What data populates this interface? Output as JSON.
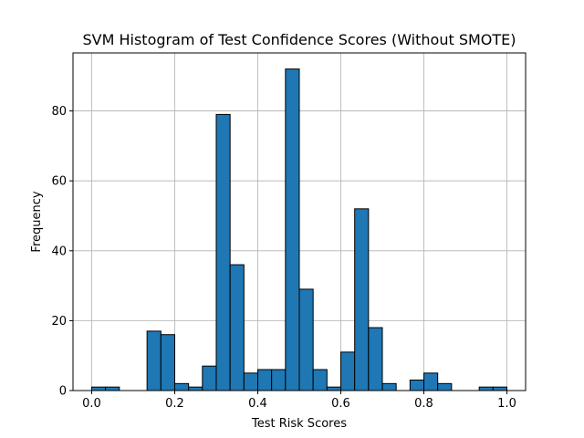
{
  "chart_data": {
    "type": "bar",
    "title": "SVM Histogram of Test Confidence Scores (Without SMOTE)",
    "xlabel": "Test Risk Scores",
    "ylabel": "Frequency",
    "xlim": [
      -0.045,
      1.045
    ],
    "ylim": [
      0,
      96.6
    ],
    "x_ticks": [
      0.0,
      0.2,
      0.4,
      0.6,
      0.8,
      1.0
    ],
    "x_tick_labels": [
      "0.0",
      "0.2",
      "0.4",
      "0.6",
      "0.8",
      "1.0"
    ],
    "y_ticks": [
      0,
      20,
      40,
      60,
      80
    ],
    "y_tick_labels": [
      "0",
      "20",
      "40",
      "60",
      "80"
    ],
    "bin_range": [
      0.0,
      1.0
    ],
    "bin_count": 30,
    "values": [
      1,
      1,
      0,
      0,
      17,
      16,
      2,
      1,
      7,
      79,
      36,
      5,
      6,
      6,
      92,
      29,
      6,
      1,
      11,
      52,
      18,
      2,
      0,
      3,
      5,
      2,
      0,
      0,
      1,
      1
    ],
    "grid": true,
    "bar_color": "#1f77b4",
    "edge_color": "#000000"
  }
}
